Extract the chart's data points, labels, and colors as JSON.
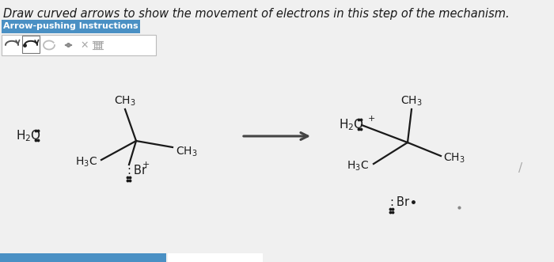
{
  "title": "Draw curved arrows to show the movement of electrons in this step of the mechanism.",
  "title_fontsize": 10.5,
  "bg_color": "#d8d8d8",
  "box_label": "Arrow-pushing Instructions",
  "box_bg": "#4a90c4",
  "box_text_color": "#ffffff",
  "arrow_color": "#333333",
  "text_color": "#1a1a1a",
  "bottom_bar_color": "#4a90c4",
  "white": "#ffffff"
}
